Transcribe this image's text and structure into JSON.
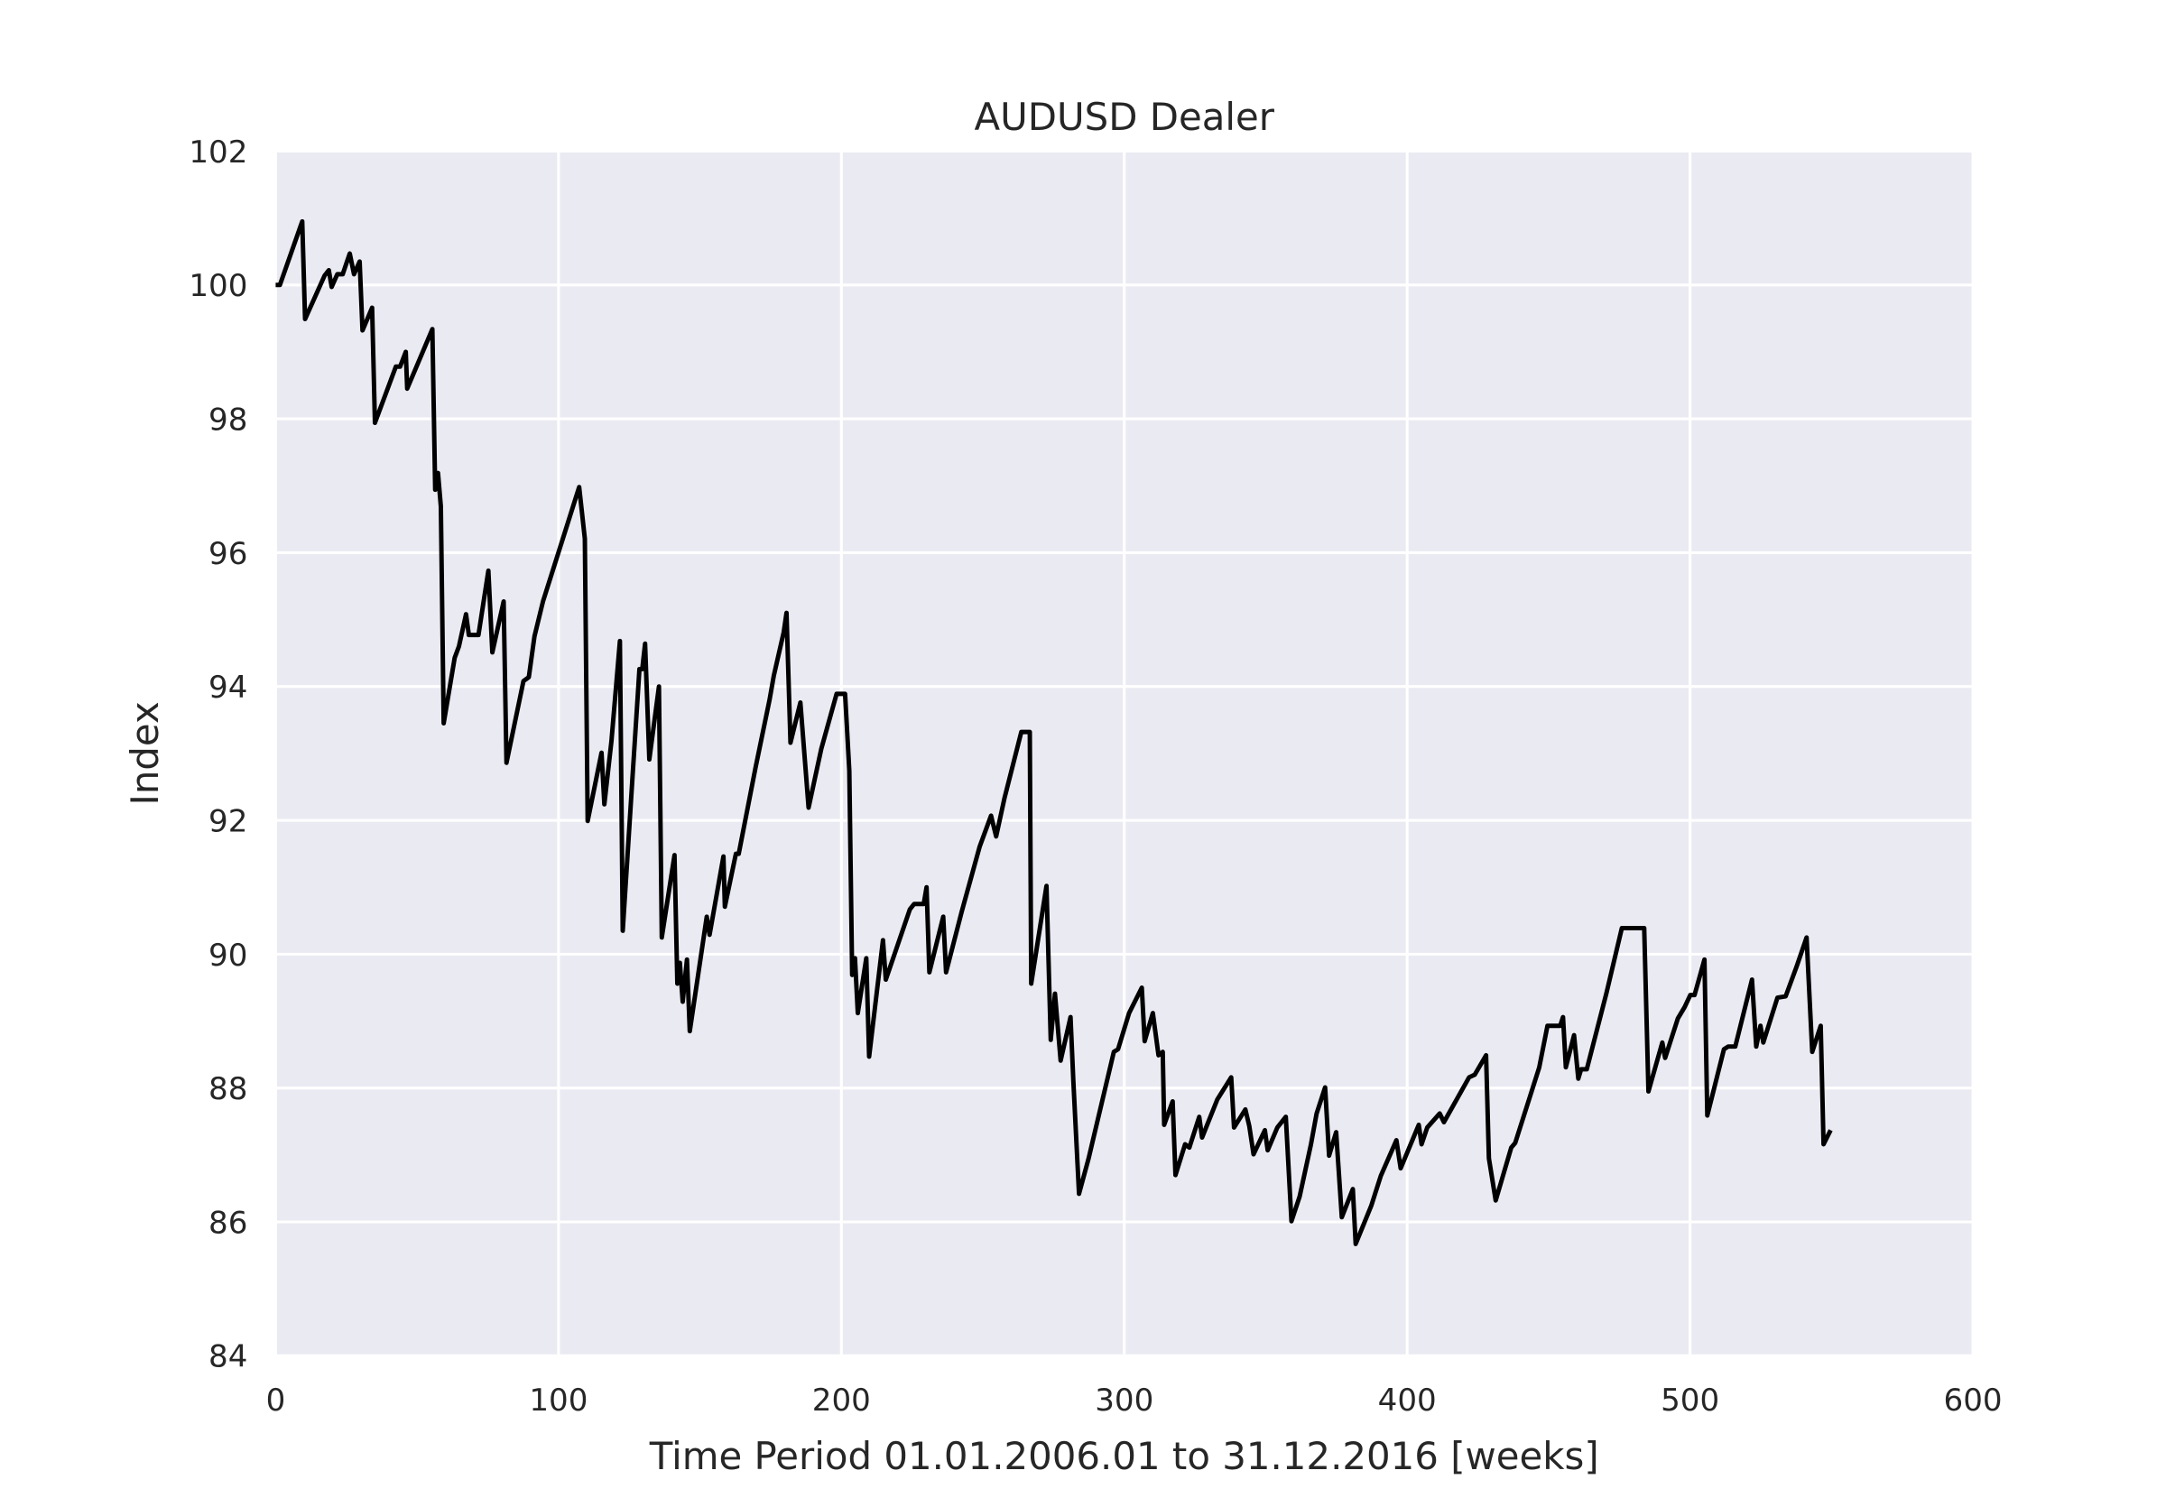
{
  "chart_data": {
    "type": "line",
    "title": "AUDUSD Dealer",
    "x_label": "Time Period 01.01.2006.01 to 31.12.2016 [weeks]",
    "y_label": "Index",
    "xlim": [
      0,
      600
    ],
    "xticks": [
      0,
      100,
      200,
      300,
      400,
      500,
      600
    ],
    "ylim": [
      84,
      102
    ],
    "yticks": [
      84,
      86,
      88,
      90,
      92,
      94,
      96,
      98,
      100,
      102
    ],
    "grid": true,
    "background": "#eaeaf2",
    "series": [
      {
        "color": "#000000",
        "x": [
          0,
          1.5,
          9.4,
          10.4,
          17.3,
          18.8,
          19.8,
          21.8,
          23.7,
          26.2,
          27.7,
          29.7,
          30.7,
          34.1,
          35.1,
          42.5,
          44,
          46,
          46.5,
          55.4,
          56.4,
          57.4,
          58.4,
          59.4,
          63.3,
          64.8,
          67.3,
          68.3,
          71.7,
          75.2,
          76.6,
          80.6,
          81.6,
          87.6,
          89.5,
          91.5,
          94.5,
          107.3,
          109.3,
          110.3,
          115.2,
          116.2,
          118.7,
          121.7,
          122.7,
          126.1,
          128.6,
          129.6,
          130.6,
          132.1,
          135.5,
          136.5,
          141,
          142,
          142.9,
          143.9,
          145.4,
          146.4,
          152.4,
          153.4,
          158.3,
          158.8,
          162.7,
          163.7,
          169.7,
          174.6,
          176.1,
          179.6,
          180.6,
          182,
          185.5,
          188.4,
          192.9,
          198.3,
          201.3,
          202.8,
          203.8,
          204.8,
          205.8,
          208.8,
          209.8,
          214.7,
          215.7,
          224.2,
          225.7,
          229.1,
          230.1,
          231.1,
          236,
          237,
          242.5,
          248.9,
          252.9,
          254.7,
          257.7,
          263.6,
          266.6,
          267.1,
          272.5,
          274,
          275.5,
          277.5,
          281,
          282,
          284,
          287.4,
          296.3,
          297.8,
          301.7,
          306.2,
          307.2,
          310.1,
          312.1,
          313.6,
          314.1,
          317.1,
          318.1,
          321.5,
          323,
          326.5,
          327.5,
          332.9,
          337.8,
          338.8,
          342.8,
          344.2,
          345.7,
          349.7,
          350.7,
          354.1,
          357.1,
          359.1,
          362,
          366,
          368,
          371,
          372.4,
          374.9,
          376.9,
          380.8,
          381.8,
          387.3,
          390.7,
          396.2,
          397.7,
          404.1,
          405.1,
          407.1,
          411.5,
          413,
          421.9,
          423.9,
          427.9,
          428.9,
          431.3,
          436.8,
          438.2,
          443.7,
          446.7,
          449.6,
          454.1,
          455.1,
          456.1,
          459,
          460.5,
          461.5,
          463.5,
          470.4,
          475.9,
          483.8,
          485.3,
          490.2,
          491.2,
          495.7,
          498.1,
          500.1,
          501.6,
          505.1,
          506.1,
          512,
          513.5,
          516,
          521.9,
          523.4,
          524.9,
          525.9,
          530.9,
          533.8,
          537.8,
          541.2,
          543.2,
          546.2,
          547.2,
          549.7
        ],
        "values": [
          100,
          100,
          100.95,
          99.49,
          100.14,
          100.22,
          99.97,
          100.16,
          100.16,
          100.47,
          100.16,
          100.35,
          99.32,
          99.66,
          97.94,
          98.78,
          98.78,
          99.0,
          98.45,
          99.34,
          96.94,
          97.19,
          96.69,
          93.45,
          94.43,
          94.6,
          95.08,
          94.77,
          94.77,
          95.73,
          94.51,
          95.27,
          92.86,
          94.08,
          94.14,
          94.75,
          95.27,
          96.98,
          96.21,
          91.99,
          93.01,
          92.24,
          93.18,
          94.68,
          90.35,
          92.61,
          94.26,
          94.26,
          94.64,
          92.91,
          94.0,
          90.25,
          91.48,
          89.56,
          89.87,
          89.29,
          89.92,
          88.85,
          90.56,
          90.29,
          91.46,
          90.71,
          91.5,
          91.5,
          92.8,
          93.8,
          94.16,
          94.81,
          95.1,
          93.16,
          93.76,
          92.19,
          93.07,
          93.89,
          93.89,
          92.74,
          89.69,
          89.94,
          89.12,
          89.94,
          88.47,
          90.21,
          89.62,
          90.67,
          90.75,
          90.75,
          91.0,
          89.73,
          90.56,
          89.73,
          90.63,
          91.61,
          92.07,
          91.76,
          92.34,
          93.32,
          93.32,
          89.56,
          91.02,
          88.72,
          89.41,
          88.41,
          89.06,
          88.1,
          86.42,
          86.95,
          88.54,
          88.58,
          89.12,
          89.5,
          88.7,
          89.12,
          88.49,
          88.54,
          87.45,
          87.8,
          86.7,
          87.16,
          87.11,
          87.57,
          87.26,
          87.83,
          88.16,
          87.41,
          87.68,
          87.43,
          87.01,
          87.37,
          87.07,
          87.41,
          87.57,
          86.01,
          86.38,
          87.16,
          87.62,
          88.01,
          86.99,
          87.34,
          86.07,
          86.49,
          85.67,
          86.24,
          86.69,
          87.22,
          86.8,
          87.45,
          87.16,
          87.41,
          87.62,
          87.49,
          88.16,
          88.2,
          88.49,
          86.95,
          86.32,
          87.11,
          87.18,
          87.91,
          88.31,
          88.93,
          88.93,
          89.06,
          88.31,
          88.79,
          88.14,
          88.28,
          88.28,
          89.41,
          90.39,
          90.39,
          87.95,
          88.68,
          88.45,
          89.04,
          89.21,
          89.39,
          89.39,
          89.92,
          87.59,
          88.58,
          88.62,
          88.62,
          89.62,
          88.62,
          88.93,
          88.68,
          89.35,
          89.37,
          89.83,
          90.25,
          88.54,
          88.93,
          87.16,
          87.37
        ]
      }
    ]
  }
}
